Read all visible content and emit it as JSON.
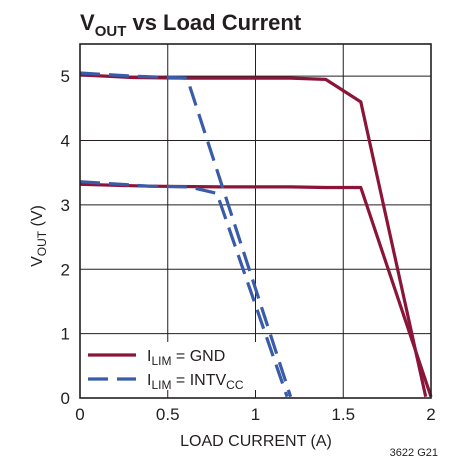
{
  "chart_data": {
    "type": "line",
    "title": {
      "main": "V",
      "sub": "OUT",
      "rest": " vs Load Current"
    },
    "xlabel": "LOAD CURRENT (A)",
    "ylabel": {
      "main": "V",
      "sub": "OUT",
      "rest": " (V)"
    },
    "xlim": [
      0,
      2
    ],
    "ylim": [
      0,
      5.5
    ],
    "xticks": [
      "0",
      "0.5",
      "1",
      "1.5",
      "2"
    ],
    "yticks": [
      "0",
      "1",
      "2",
      "3",
      "4",
      "5"
    ],
    "grid": true,
    "legend_position": "bottom-left",
    "footnote": "3622 G21",
    "series": [
      {
        "legend": {
          "main": "I",
          "sub": "LIM",
          "rest": " = GND",
          "sub2": ""
        },
        "color": "#8b1538",
        "dash": "solid",
        "curves": [
          [
            [
              0,
              5.02
            ],
            [
              0.3,
              4.98
            ],
            [
              0.6,
              4.97
            ],
            [
              1.0,
              4.97
            ],
            [
              1.2,
              4.97
            ],
            [
              1.4,
              4.95
            ],
            [
              1.6,
              4.6
            ],
            [
              1.97,
              0.02
            ]
          ],
          [
            [
              0,
              3.32
            ],
            [
              0.4,
              3.29
            ],
            [
              0.8,
              3.28
            ],
            [
              1.2,
              3.28
            ],
            [
              1.4,
              3.27
            ],
            [
              1.6,
              3.27
            ],
            [
              2.0,
              0.02
            ]
          ]
        ]
      },
      {
        "legend": {
          "main": "I",
          "sub": "LIM",
          "rest": " = INTV",
          "sub2": "CC"
        },
        "color": "#3a5ba7",
        "dash": "long-dash",
        "curves": [
          [
            [
              0,
              5.05
            ],
            [
              0.3,
              5.0
            ],
            [
              0.61,
              4.97
            ],
            [
              1.2,
              0.02
            ]
          ],
          [
            [
              0,
              3.36
            ],
            [
              0.4,
              3.29
            ],
            [
              0.62,
              3.28
            ],
            [
              0.78,
              3.18
            ],
            [
              1.18,
              0.02
            ]
          ]
        ]
      }
    ]
  }
}
